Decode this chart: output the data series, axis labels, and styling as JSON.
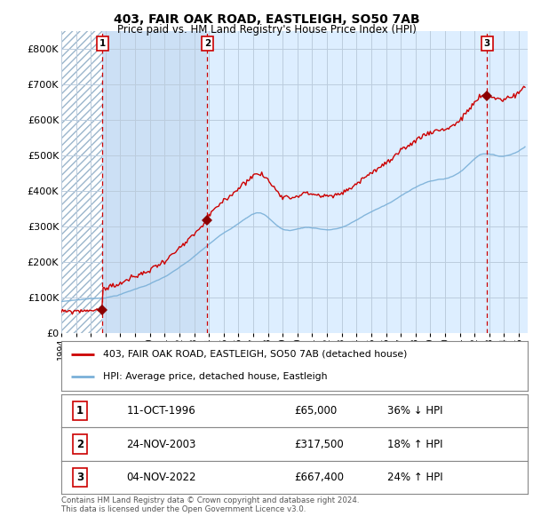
{
  "title": "403, FAIR OAK ROAD, EASTLEIGH, SO50 7AB",
  "subtitle": "Price paid vs. HM Land Registry's House Price Index (HPI)",
  "legend_line1": "403, FAIR OAK ROAD, EASTLEIGH, SO50 7AB (detached house)",
  "legend_line2": "HPI: Average price, detached house, Eastleigh",
  "sale_times": [
    1996.7778,
    2003.8972,
    2022.8389
  ],
  "sale_prices": [
    65000,
    317500,
    667400
  ],
  "sale_labels": [
    "1",
    "2",
    "3"
  ],
  "sale_infos": [
    "11-OCT-1996",
    "24-NOV-2003",
    "04-NOV-2022"
  ],
  "sale_amounts": [
    "£65,000",
    "£317,500",
    "£667,400"
  ],
  "sale_pcts": [
    "36% ↓ HPI",
    "18% ↑ HPI",
    "24% ↑ HPI"
  ],
  "ylim": [
    0,
    850000
  ],
  "yticks": [
    0,
    100000,
    200000,
    300000,
    400000,
    500000,
    600000,
    700000,
    800000
  ],
  "ytick_labels": [
    "£0",
    "£100K",
    "£200K",
    "£300K",
    "£400K",
    "£500K",
    "£600K",
    "£700K",
    "£800K"
  ],
  "hpi_color": "#7ab0d8",
  "price_color": "#cc0000",
  "marker_color": "#8b0000",
  "vline_color": "#cc0000",
  "plot_bg_color": "#ddeeff",
  "shade_color": "#cce0f5",
  "hatch_color": "#b0c8e0",
  "background_color": "#ffffff",
  "grid_color": "#bbccdd",
  "xlim_start": 1994.0,
  "xlim_end": 2025.6,
  "footnote": "Contains HM Land Registry data © Crown copyright and database right 2024.\nThis data is licensed under the Open Government Licence v3.0."
}
